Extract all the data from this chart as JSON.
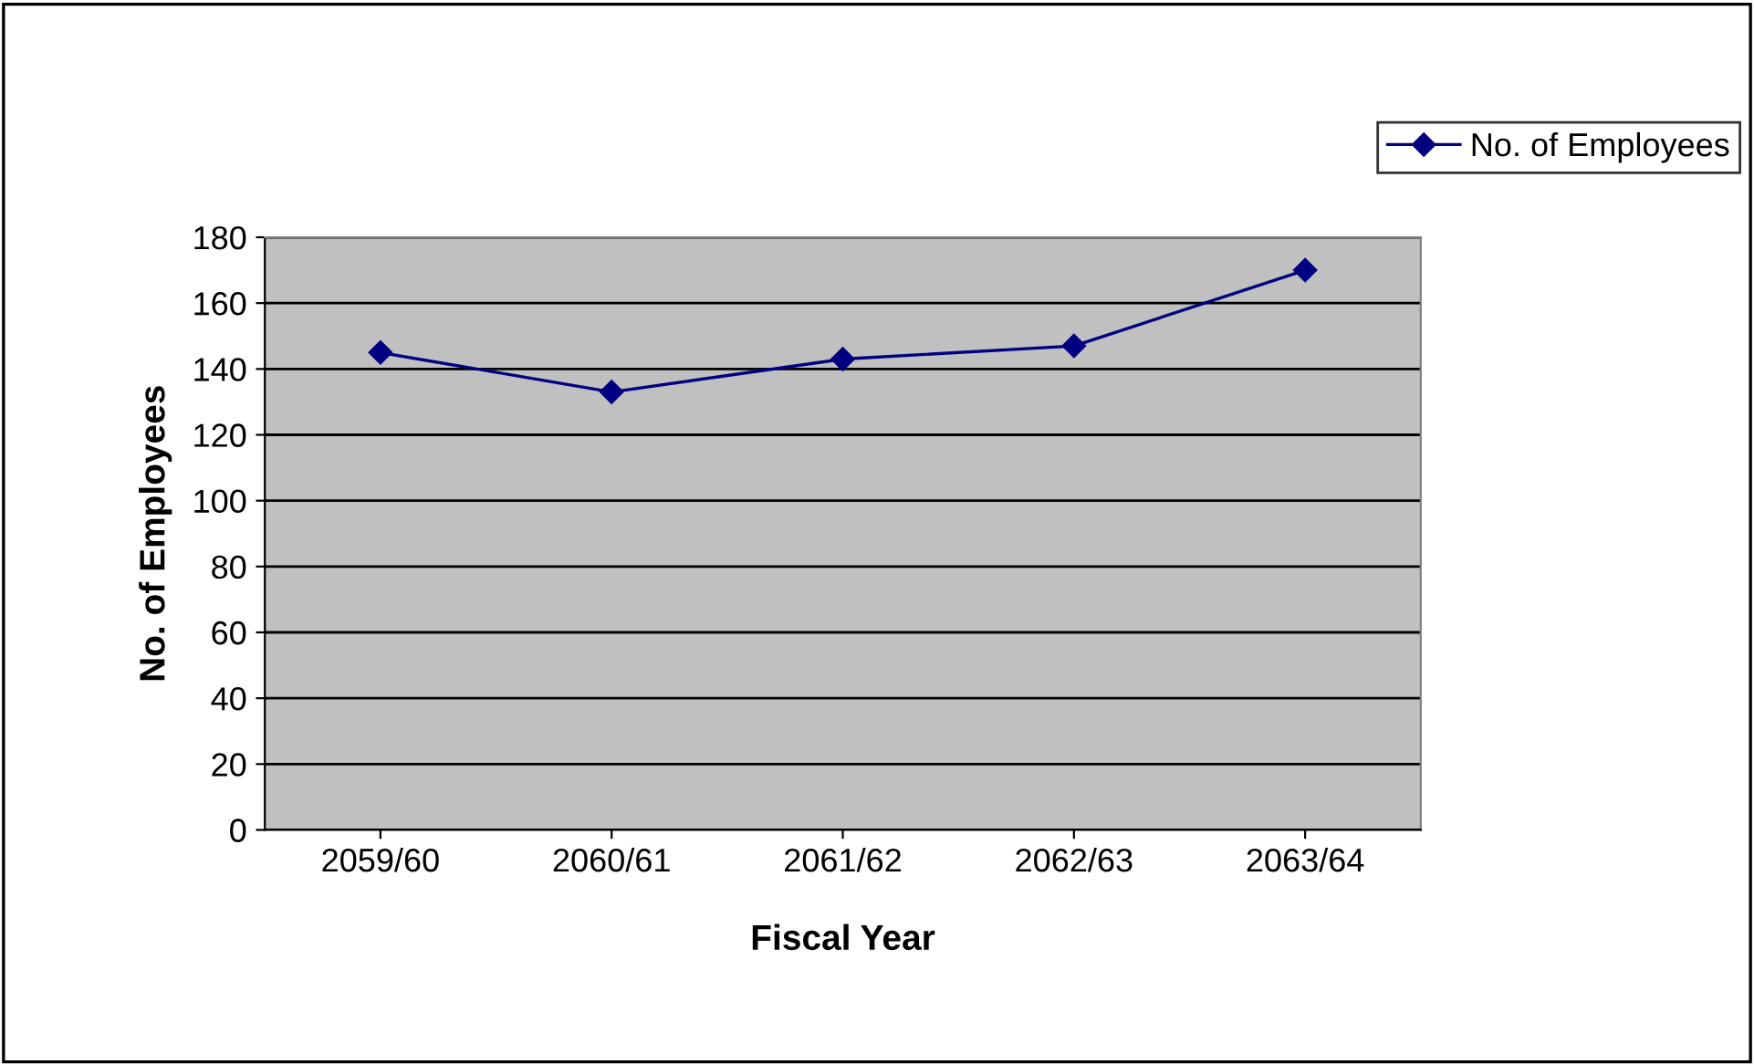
{
  "chart_data": {
    "type": "line",
    "xlabel": "Fiscal Year",
    "ylabel": "No. of Employees",
    "categories": [
      "2059/60",
      "2060/61",
      "2061/62",
      "2062/63",
      "2063/64"
    ],
    "series": [
      {
        "name": "No. of Employees",
        "color": "#000080",
        "values": [
          145,
          133,
          143,
          147,
          170
        ]
      }
    ],
    "ylim": [
      0,
      180
    ],
    "yticks": [
      0,
      20,
      40,
      60,
      80,
      100,
      120,
      140,
      160,
      180
    ],
    "grid": "y",
    "legend": "top right",
    "marker": "diamond",
    "line_style": "solid"
  }
}
